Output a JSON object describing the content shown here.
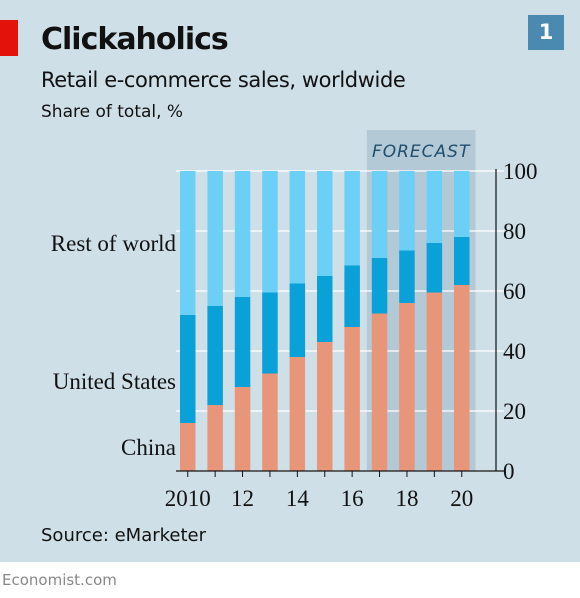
{
  "chart_number": "1",
  "title": "Clickaholics",
  "subtitle": "Retail e-commerce sales, worldwide",
  "unit": "Share of total, %",
  "source": "Source: eMarketer",
  "footer": "Economist.com",
  "colors": {
    "background": "#cfdfe8",
    "china": "#e8967a",
    "united_states": "#0aa0d8",
    "rest_of_world": "#6ccff5",
    "forecast_band": "#b4c9d6",
    "accent_red": "#e3120b"
  },
  "chart_data": {
    "type": "bar",
    "stacked": true,
    "categories": [
      "2010",
      "2011",
      "2012",
      "2013",
      "2014",
      "2015",
      "2016",
      "2017",
      "2018",
      "2019",
      "2020"
    ],
    "x_tick_labels": [
      {
        "category": "2010",
        "label": "2010"
      },
      {
        "category": "2012",
        "label": "12"
      },
      {
        "category": "2014",
        "label": "14"
      },
      {
        "category": "2016",
        "label": "16"
      },
      {
        "category": "2018",
        "label": "18"
      },
      {
        "category": "2020",
        "label": "20"
      }
    ],
    "y_ticks": [
      "0",
      "20",
      "40",
      "60",
      "80",
      "100"
    ],
    "ylim": [
      0,
      100
    ],
    "y_axis_side": "right",
    "forecast": {
      "label": "FORECAST",
      "from": "2017",
      "to": "2020"
    },
    "series": [
      {
        "name": "China",
        "values": [
          16,
          22,
          28,
          32.5,
          38,
          43,
          48,
          52.5,
          56,
          59.5,
          62
        ]
      },
      {
        "name": "United States",
        "values": [
          36,
          33,
          30,
          27,
          24.5,
          22,
          20.5,
          18.5,
          17.5,
          16.5,
          16
        ]
      },
      {
        "name": "Rest of world",
        "values": [
          48,
          45,
          42,
          40.5,
          37.5,
          35,
          31.5,
          29,
          26.5,
          24,
          22
        ]
      }
    ]
  }
}
